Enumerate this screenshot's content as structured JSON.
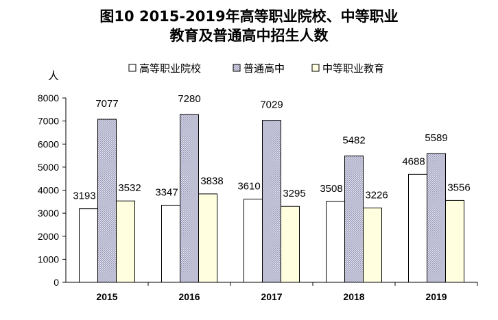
{
  "chart_data": {
    "type": "bar",
    "title_line1": "图10 2015-2019年高等职业院校、中等职业",
    "title_line2": "教育及普通高中招生人数",
    "ylabel": "人",
    "xlabel": "",
    "categories": [
      "2015",
      "2016",
      "2017",
      "2018",
      "2019"
    ],
    "ylim": [
      0,
      8000
    ],
    "yticks": [
      "0",
      "1000",
      "2000",
      "3000",
      "4000",
      "5000",
      "6000",
      "7000",
      "8000"
    ],
    "legend_position": "top",
    "grid": false,
    "series": [
      {
        "name": "高等职业院校",
        "values": [
          3193,
          3347,
          3610,
          3508,
          4688
        ],
        "color": "#ffffff"
      },
      {
        "name": "普通高中",
        "values": [
          7077,
          7280,
          7029,
          5482,
          5589
        ],
        "color": "#c8c8dc",
        "pattern": "checker"
      },
      {
        "name": "中等职业教育",
        "values": [
          3532,
          3838,
          3295,
          3226,
          3556
        ],
        "color": "#ffffe0"
      }
    ]
  }
}
